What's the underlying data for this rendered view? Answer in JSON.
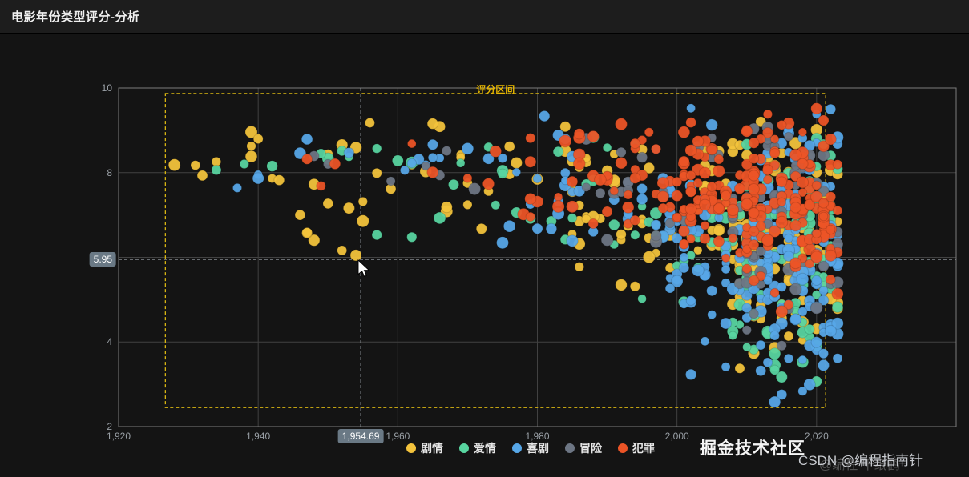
{
  "header": {
    "title": "电影年份类型评分-分析"
  },
  "watermarks": {
    "community": "掘金技术社区",
    "csdn": "CSDN @编程指南针",
    "faint": "@编程 千纸鹤"
  },
  "chart_data": {
    "type": "scatter",
    "title": "电影年份类型评分-分析",
    "xlabel": "",
    "ylabel": "",
    "grid": true,
    "legend_position": "bottom",
    "x_axis": {
      "min": 1920,
      "max": 2040,
      "ticks": [
        1920,
        1940,
        1960,
        1980,
        2000,
        2020
      ],
      "tick_labels": [
        "1,920",
        "1,940",
        "1,960",
        "1,980",
        "2,000",
        "2,020"
      ]
    },
    "y_axis": {
      "min": 2,
      "max": 10,
      "ticks": [
        2,
        4,
        6,
        8,
        10
      ],
      "tick_labels": [
        "2",
        "4",
        "6",
        "8",
        "10"
      ]
    },
    "axis_pointer": {
      "x": 1954.69,
      "y": 5.95,
      "x_label": "1,954.69",
      "y_label": "5.95",
      "box_color": "#6a7985"
    },
    "brush": {
      "label": "评分区间",
      "x_range": [
        1926.7,
        2021.3
      ],
      "y_range": [
        2.45,
        9.87
      ],
      "color": "#d8b512"
    },
    "cluster_format": "[year_min, year_max, rating_min, rating_max, count] - years are integers, ratings 2..10",
    "series": [
      {
        "name": "剧情",
        "color": "#f3c33c",
        "clusters": [
          [
            1925,
            1958,
            7.6,
            9.3,
            16
          ],
          [
            1945,
            1975,
            5.6,
            8.0,
            14
          ],
          [
            1958,
            1990,
            6.5,
            9.4,
            22
          ],
          [
            1985,
            2008,
            4.8,
            9.5,
            45
          ],
          [
            2008,
            2023,
            3.2,
            9.7,
            110
          ]
        ]
      },
      {
        "name": "爱情",
        "color": "#58d5a0",
        "clusters": [
          [
            1932,
            1965,
            7.8,
            9.0,
            10
          ],
          [
            1955,
            1990,
            6.0,
            9.2,
            18
          ],
          [
            1990,
            2012,
            4.0,
            9.4,
            35
          ],
          [
            2008,
            2023,
            2.6,
            9.5,
            85
          ]
        ]
      },
      {
        "name": "喜剧",
        "color": "#57a7e8",
        "clusters": [
          [
            1936,
            1972,
            7.2,
            9.5,
            14
          ],
          [
            1972,
            2000,
            5.8,
            9.5,
            35
          ],
          [
            1998,
            2015,
            3.0,
            9.6,
            70
          ],
          [
            2012,
            2023,
            2.4,
            9.7,
            120
          ]
        ]
      },
      {
        "name": "冒险",
        "color": "#6d7684",
        "clusters": [
          [
            1942,
            1985,
            7.6,
            8.8,
            7
          ],
          [
            1985,
            2008,
            6.0,
            9.2,
            22
          ],
          [
            2008,
            2023,
            3.6,
            9.5,
            65
          ]
        ]
      },
      {
        "name": "犯罪",
        "color": "#ec5426",
        "clusters": [
          [
            1944,
            1978,
            7.6,
            8.9,
            8
          ],
          [
            1978,
            2000,
            6.2,
            9.3,
            45
          ],
          [
            2000,
            2012,
            5.5,
            9.6,
            80
          ],
          [
            2010,
            2023,
            4.6,
            9.7,
            130
          ]
        ]
      }
    ]
  }
}
